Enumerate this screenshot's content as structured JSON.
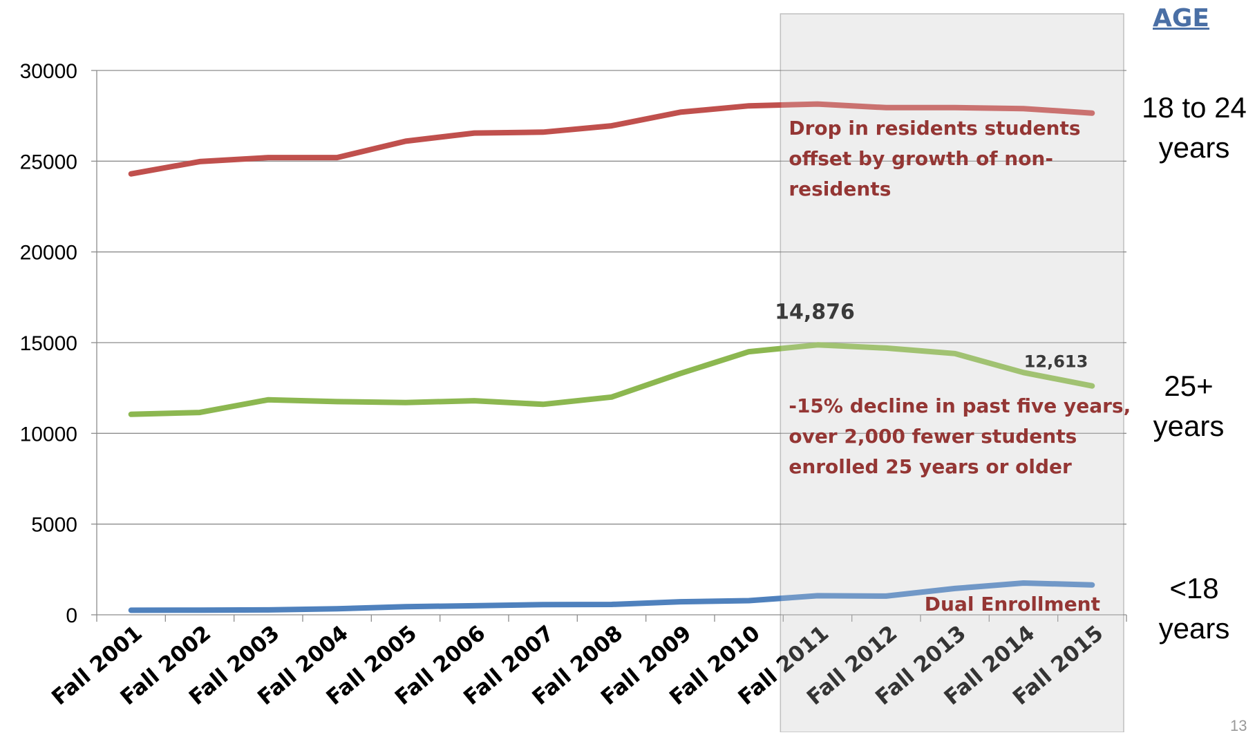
{
  "heading": "AGE",
  "page_number": "13",
  "side_labels": {
    "young": [
      "18 to 24",
      "years"
    ],
    "older": [
      "25+",
      "years"
    ],
    "minor": [
      "<18",
      "years"
    ]
  },
  "chart_data": {
    "type": "line",
    "categories": [
      "Fall 2001",
      "Fall 2002",
      "Fall 2003",
      "Fall 2004",
      "Fall 2005",
      "Fall 2006",
      "Fall 2007",
      "Fall 2008",
      "Fall 2009",
      "Fall 2010",
      "Fall 2011",
      "Fall 2012",
      "Fall 2013",
      "Fall 2014",
      "Fall 2015"
    ],
    "ylim": [
      0,
      30000
    ],
    "yticks": [
      "0",
      "5000",
      "10000",
      "15000",
      "20000",
      "25000",
      "30000"
    ],
    "grid": true,
    "highlight_range": [
      "Fall 2011",
      "Fall 2015"
    ],
    "series": [
      {
        "key": "age_18_24",
        "color": "#c0504d",
        "values": [
          24300,
          24980,
          25200,
          25200,
          26100,
          26550,
          26600,
          26950,
          27700,
          28050,
          28150,
          27950,
          27950,
          27900,
          27650
        ]
      },
      {
        "key": "age_25_plus",
        "color": "#8cb750",
        "values": [
          11050,
          11150,
          11850,
          11750,
          11700,
          11800,
          11600,
          12000,
          13300,
          14500,
          14876,
          14700,
          14400,
          13350,
          12613
        ]
      },
      {
        "key": "age_under_18",
        "color": "#4f81bd",
        "values": [
          250,
          260,
          270,
          330,
          450,
          500,
          560,
          570,
          720,
          780,
          1050,
          1030,
          1450,
          1750,
          1650
        ]
      }
    ],
    "data_labels": [
      {
        "series": "age_25_plus",
        "category": "Fall 2011",
        "text": "14,876"
      },
      {
        "series": "age_25_plus",
        "category": "Fall 2015",
        "text": "12,613"
      }
    ],
    "annotations": {
      "residents": [
        "Drop in residents students",
        "offset by growth of non-",
        "residents"
      ],
      "decline": [
        "-15% decline in past five years,",
        "over 2,000 fewer students",
        "enrolled 25 years or older"
      ],
      "dual": [
        "Dual Enrollment"
      ]
    }
  }
}
